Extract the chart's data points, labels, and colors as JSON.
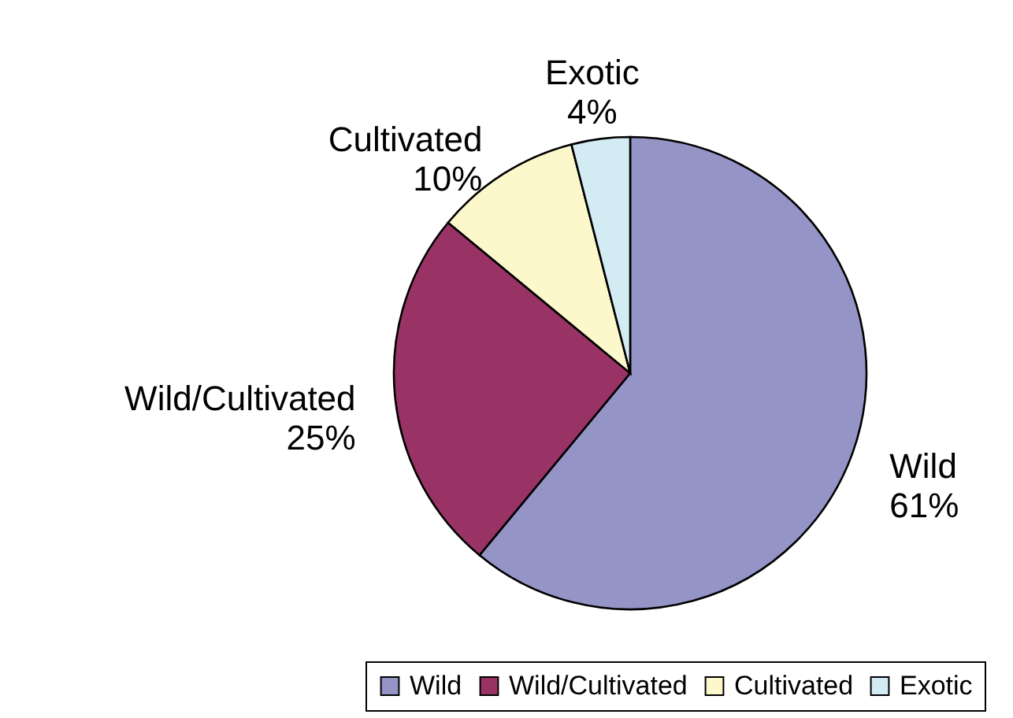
{
  "chart_data": {
    "type": "pie",
    "categories": [
      "Wild",
      "Wild/Cultivated",
      "Cultivated",
      "Exotic"
    ],
    "values": [
      61,
      25,
      10,
      4
    ],
    "colors": [
      "#9594c7",
      "#993366",
      "#fcf8cc",
      "#d3ecf3"
    ],
    "value_labels": [
      "61%",
      "25%",
      "10%",
      "4%"
    ],
    "legend": "bottom right"
  }
}
